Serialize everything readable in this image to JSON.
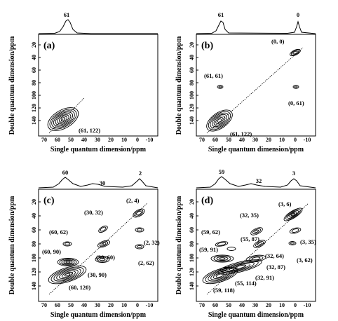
{
  "figure": {
    "x_axis_label": "Single quantum dimension/ppm",
    "y_axis_label": "Double quantum dimension/ppm",
    "x_ticks": [
      "70",
      "60",
      "50",
      "40",
      "30",
      "20",
      "10",
      "0",
      "-10"
    ],
    "y_ticks": [
      "20",
      "40",
      "60",
      "80",
      "100",
      "120",
      "140"
    ],
    "panels": [
      {
        "label": "a",
        "projection_peaks": [
          "61"
        ],
        "peaks": [
          {
            "label": "(61, 122)",
            "sq": 61,
            "dq": 122
          }
        ]
      },
      {
        "label": "b",
        "projection_peaks": [
          "61",
          "0"
        ],
        "peaks": [
          {
            "label": "(0, 0)",
            "sq": 0,
            "dq": 0
          },
          {
            "label": "(61, 61)",
            "sq": 61,
            "dq": 61
          },
          {
            "label": "(0, 61)",
            "sq": 0,
            "dq": 61
          },
          {
            "label": "(61, 122)",
            "sq": 61,
            "dq": 122
          }
        ]
      },
      {
        "label": "c",
        "projection_peaks": [
          "60",
          "30",
          "2"
        ],
        "peaks": [
          {
            "label": "(2, 4)",
            "sq": 2,
            "dq": 4
          },
          {
            "label": "(30, 32)",
            "sq": 30,
            "dq": 32
          },
          {
            "label": "(60, 62)",
            "sq": 60,
            "dq": 62
          },
          {
            "label": "(2, 32)",
            "sq": 2,
            "dq": 32
          },
          {
            "label": "(30, 60)",
            "sq": 30,
            "dq": 60
          },
          {
            "label": "(60, 90)",
            "sq": 60,
            "dq": 90
          },
          {
            "label": "(2, 62)",
            "sq": 2,
            "dq": 62
          },
          {
            "label": "(30, 90)",
            "sq": 30,
            "dq": 90
          },
          {
            "label": "(60, 120)",
            "sq": 60,
            "dq": 120
          }
        ]
      },
      {
        "label": "d",
        "projection_peaks": [
          "59",
          "32",
          "3"
        ],
        "peaks": [
          {
            "label": "(3, 6)",
            "sq": 3,
            "dq": 6
          },
          {
            "label": "(32, 35)",
            "sq": 32,
            "dq": 35
          },
          {
            "label": "(3, 35)",
            "sq": 3,
            "dq": 35
          },
          {
            "label": "(59, 62)",
            "sq": 59,
            "dq": 62
          },
          {
            "label": "(55, 87)",
            "sq": 55,
            "dq": 87
          },
          {
            "label": "(32, 64)",
            "sq": 32,
            "dq": 64
          },
          {
            "label": "(3, 62)",
            "sq": 3,
            "dq": 62
          },
          {
            "label": "(59, 91)",
            "sq": 59,
            "dq": 91
          },
          {
            "label": "(32, 87)",
            "sq": 32,
            "dq": 87
          },
          {
            "label": "(32, 91)",
            "sq": 32,
            "dq": 91
          },
          {
            "label": "(55, 114)",
            "sq": 55,
            "dq": 114
          },
          {
            "label": "(59, 118)",
            "sq": 59,
            "dq": 118
          }
        ]
      }
    ]
  }
}
